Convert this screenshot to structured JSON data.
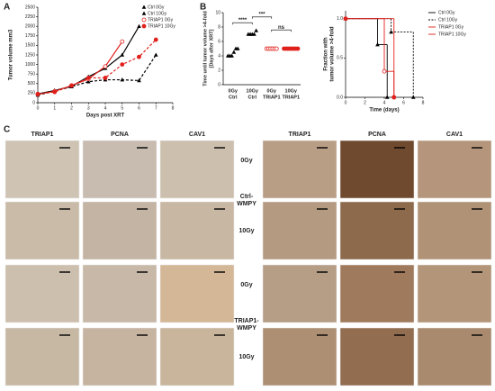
{
  "panel_labels": [
    "A",
    "B",
    "C"
  ],
  "chart_data": [
    {
      "type": "line",
      "ylabel": "Tumor volume mm3",
      "xlabel": "Days post XRT",
      "xlim": [
        0,
        8
      ],
      "xticks": [
        0,
        1,
        2,
        3,
        4,
        5,
        6,
        7,
        8
      ],
      "ylim": [
        0,
        2500
      ],
      "yticks": [
        0,
        250,
        500,
        750,
        1000,
        1250,
        1500,
        1750,
        2000,
        2250,
        2500
      ],
      "series": [
        {
          "name": "Ctrl 0Gy",
          "color": "#000000",
          "marker": "triangle",
          "dashed": false,
          "x": [
            0,
            1,
            2,
            3,
            4,
            5,
            6
          ],
          "values": [
            230,
            320,
            430,
            680,
            900,
            1250,
            2000
          ]
        },
        {
          "name": "Ctrl 10Gy",
          "color": "#000000",
          "marker": "triangle",
          "dashed": true,
          "x": [
            0,
            1,
            2,
            3,
            4,
            5,
            6,
            7
          ],
          "values": [
            200,
            300,
            420,
            550,
            600,
            600,
            580,
            1250
          ]
        },
        {
          "name": "TRIAP1 0Gy",
          "color": "#e0201b",
          "marker": "open-circle",
          "dashed": false,
          "x": [
            0,
            1,
            2,
            3,
            4,
            5
          ],
          "values": [
            220,
            300,
            450,
            620,
            950,
            1600
          ]
        },
        {
          "name": "TRIAP1 10Gy",
          "color": "#e0201b",
          "marker": "circle",
          "dashed": true,
          "x": [
            0,
            1,
            2,
            3,
            4,
            5,
            6,
            7
          ],
          "values": [
            230,
            280,
            450,
            650,
            650,
            1000,
            1200,
            1650
          ]
        }
      ]
    },
    {
      "type": "dot",
      "ylabel": [
        "Time until tumor volume >4-fold",
        "[Days after XRT]"
      ],
      "ylim": [
        0,
        10
      ],
      "yticks": [
        0,
        2,
        4,
        6,
        8,
        10
      ],
      "categories": [
        [
          "0Gy",
          "Ctrl"
        ],
        [
          "10Gy",
          "Ctrl"
        ],
        [
          "0Gy",
          "TRIAP1"
        ],
        [
          "10Gy",
          "TRIAP1"
        ]
      ],
      "colors": [
        "#000000",
        "#000000",
        "#e0201b",
        "#e0201b"
      ],
      "groups": [
        [
          4,
          4,
          4,
          4.5,
          5,
          5
        ],
        [
          7,
          7,
          7,
          7,
          7.5
        ],
        [
          5,
          5,
          5,
          5,
          5,
          5
        ],
        [
          5,
          5,
          5,
          5,
          5,
          5,
          5,
          5
        ]
      ],
      "annotations": [
        "****",
        "***",
        "ns"
      ]
    },
    {
      "type": "step",
      "ylabel": [
        "Fraction with",
        "tumor volume >4-fold"
      ],
      "xlabel": "Time (days)",
      "xlim": [
        0,
        8
      ],
      "xticks": [
        0,
        2,
        4,
        6,
        8
      ],
      "ylim": [
        0,
        1.1
      ],
      "yticks": [
        {
          "value": 0,
          "label": "0.0"
        },
        {
          "value": 0.5,
          "label": "0.5"
        },
        {
          "value": 1,
          "label": "1.0"
        }
      ],
      "series": [
        {
          "name": "Ctrl 0Gy",
          "color": "#000000",
          "dashed": false,
          "x": [
            0,
            3.3,
            4.3
          ],
          "values": [
            1,
            0.67,
            0
          ]
        },
        {
          "name": "Ctrl 10Gy",
          "color": "#000000",
          "dashed": true,
          "x": [
            0,
            4.7,
            7
          ],
          "values": [
            1,
            0.83,
            0
          ]
        },
        {
          "name": "TRIAP1 0Gy",
          "color": "#e0201b",
          "dashed": false,
          "x": [
            0,
            4,
            5
          ],
          "values": [
            1,
            0.33,
            0
          ]
        },
        {
          "name": "TRIAP1 10Gy",
          "color": "#e0201b",
          "dashed": false,
          "x": [
            0,
            5
          ],
          "values": [
            1,
            0
          ]
        }
      ]
    }
  ],
  "panel_c": {
    "columns": [
      "TRIAP1",
      "PCNA",
      "CAV1"
    ],
    "groups": [
      {
        "name": [
          "Ctrl-",
          "WMPY"
        ],
        "rows": [
          "0Gy",
          "10Gy"
        ]
      },
      {
        "name": [
          "TRIAP1-",
          "WMPY"
        ],
        "rows": [
          "0Gy",
          "10Gy"
        ]
      }
    ]
  }
}
